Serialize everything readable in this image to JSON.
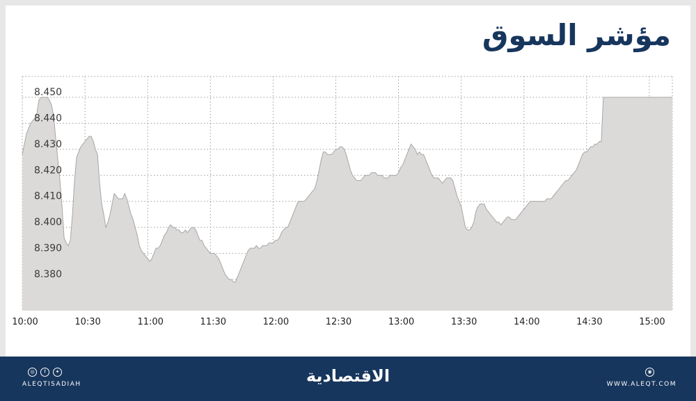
{
  "chart_data": {
    "type": "area",
    "title": "مؤشر السوق",
    "x_ticks": [
      "10:00",
      "10:30",
      "11:00",
      "11:30",
      "12:00",
      "12:30",
      "13:00",
      "13:30",
      "14:00",
      "14:30",
      "15:00"
    ],
    "y_ticks": [
      "8.380",
      "8.390",
      "8.400",
      "8.410",
      "8.420",
      "8.430",
      "8.440",
      "8.450"
    ],
    "ylim": [
      8.368,
      8.458
    ],
    "x_range_minutes": [
      0,
      311
    ],
    "grid": true,
    "fill_color": "#dcdad9",
    "line_color": "#a8a6a5",
    "series": [
      {
        "points": [
          [
            0,
            8.428
          ],
          [
            1,
            8.432
          ],
          [
            2,
            8.436
          ],
          [
            3,
            8.438
          ],
          [
            4,
            8.44
          ],
          [
            5,
            8.441
          ],
          [
            6,
            8.442
          ],
          [
            7,
            8.444
          ],
          [
            8,
            8.449
          ],
          [
            9,
            8.45
          ],
          [
            10,
            8.45
          ],
          [
            11,
            8.45
          ],
          [
            12,
            8.45
          ],
          [
            13,
            8.449
          ],
          [
            14,
            8.447
          ],
          [
            15,
            8.443
          ],
          [
            16,
            8.434
          ],
          [
            17,
            8.426
          ],
          [
            18,
            8.418
          ],
          [
            19,
            8.408
          ],
          [
            20,
            8.396
          ],
          [
            21,
            8.394
          ],
          [
            22,
            8.393
          ],
          [
            23,
            8.395
          ],
          [
            24,
            8.405
          ],
          [
            25,
            8.418
          ],
          [
            26,
            8.427
          ],
          [
            27,
            8.429
          ],
          [
            28,
            8.431
          ],
          [
            29,
            8.432
          ],
          [
            30,
            8.433
          ],
          [
            31,
            8.434
          ],
          [
            32,
            8.435
          ],
          [
            33,
            8.435
          ],
          [
            34,
            8.433
          ],
          [
            35,
            8.43
          ],
          [
            36,
            8.428
          ],
          [
            37,
            8.417
          ],
          [
            38,
            8.409
          ],
          [
            39,
            8.405
          ],
          [
            40,
            8.4
          ],
          [
            41,
            8.402
          ],
          [
            42,
            8.405
          ],
          [
            43,
            8.409
          ],
          [
            44,
            8.413
          ],
          [
            45,
            8.412
          ],
          [
            46,
            8.411
          ],
          [
            47,
            8.411
          ],
          [
            48,
            8.411
          ],
          [
            49,
            8.413
          ],
          [
            50,
            8.411
          ],
          [
            51,
            8.408
          ],
          [
            52,
            8.405
          ],
          [
            53,
            8.403
          ],
          [
            54,
            8.4
          ],
          [
            55,
            8.397
          ],
          [
            56,
            8.393
          ],
          [
            57,
            8.391
          ],
          [
            58,
            8.39
          ],
          [
            59,
            8.389
          ],
          [
            60,
            8.388
          ],
          [
            61,
            8.387
          ],
          [
            62,
            8.388
          ],
          [
            63,
            8.39
          ],
          [
            64,
            8.392
          ],
          [
            65,
            8.392
          ],
          [
            66,
            8.393
          ],
          [
            67,
            8.395
          ],
          [
            68,
            8.397
          ],
          [
            69,
            8.398
          ],
          [
            70,
            8.4
          ],
          [
            71,
            8.401
          ],
          [
            72,
            8.4
          ],
          [
            73,
            8.4
          ],
          [
            74,
            8.399
          ],
          [
            75,
            8.399
          ],
          [
            76,
            8.398
          ],
          [
            77,
            8.398
          ],
          [
            78,
            8.399
          ],
          [
            79,
            8.398
          ],
          [
            80,
            8.399
          ],
          [
            81,
            8.4
          ],
          [
            82,
            8.4
          ],
          [
            83,
            8.399
          ],
          [
            84,
            8.397
          ],
          [
            85,
            8.395
          ],
          [
            86,
            8.395
          ],
          [
            87,
            8.393
          ],
          [
            88,
            8.392
          ],
          [
            89,
            8.391
          ],
          [
            90,
            8.39
          ],
          [
            91,
            8.39
          ],
          [
            92,
            8.39
          ],
          [
            93,
            8.389
          ],
          [
            94,
            8.388
          ],
          [
            95,
            8.386
          ],
          [
            96,
            8.384
          ],
          [
            97,
            8.382
          ],
          [
            98,
            8.381
          ],
          [
            99,
            8.38
          ],
          [
            100,
            8.38
          ],
          [
            101,
            8.379
          ],
          [
            102,
            8.379
          ],
          [
            103,
            8.381
          ],
          [
            104,
            8.383
          ],
          [
            105,
            8.385
          ],
          [
            106,
            8.387
          ],
          [
            107,
            8.389
          ],
          [
            108,
            8.391
          ],
          [
            109,
            8.392
          ],
          [
            110,
            8.392
          ],
          [
            111,
            8.392
          ],
          [
            112,
            8.393
          ],
          [
            113,
            8.392
          ],
          [
            114,
            8.392
          ],
          [
            115,
            8.393
          ],
          [
            116,
            8.393
          ],
          [
            117,
            8.393
          ],
          [
            118,
            8.394
          ],
          [
            119,
            8.394
          ],
          [
            120,
            8.394
          ],
          [
            121,
            8.395
          ],
          [
            122,
            8.395
          ],
          [
            123,
            8.396
          ],
          [
            124,
            8.398
          ],
          [
            125,
            8.399
          ],
          [
            126,
            8.4
          ],
          [
            127,
            8.4
          ],
          [
            128,
            8.402
          ],
          [
            129,
            8.404
          ],
          [
            130,
            8.406
          ],
          [
            131,
            8.408
          ],
          [
            132,
            8.41
          ],
          [
            133,
            8.41
          ],
          [
            134,
            8.41
          ],
          [
            135,
            8.41
          ],
          [
            136,
            8.411
          ],
          [
            137,
            8.412
          ],
          [
            138,
            8.413
          ],
          [
            139,
            8.414
          ],
          [
            140,
            8.415
          ],
          [
            141,
            8.418
          ],
          [
            142,
            8.422
          ],
          [
            143,
            8.426
          ],
          [
            144,
            8.429
          ],
          [
            145,
            8.429
          ],
          [
            146,
            8.428
          ],
          [
            147,
            8.428
          ],
          [
            148,
            8.428
          ],
          [
            149,
            8.429
          ],
          [
            150,
            8.43
          ],
          [
            151,
            8.43
          ],
          [
            152,
            8.431
          ],
          [
            153,
            8.431
          ],
          [
            154,
            8.43
          ],
          [
            155,
            8.428
          ],
          [
            156,
            8.425
          ],
          [
            157,
            8.422
          ],
          [
            158,
            8.42
          ],
          [
            159,
            8.419
          ],
          [
            160,
            8.418
          ],
          [
            161,
            8.418
          ],
          [
            162,
            8.418
          ],
          [
            163,
            8.419
          ],
          [
            164,
            8.42
          ],
          [
            165,
            8.42
          ],
          [
            166,
            8.42
          ],
          [
            167,
            8.421
          ],
          [
            168,
            8.421
          ],
          [
            169,
            8.421
          ],
          [
            170,
            8.42
          ],
          [
            171,
            8.42
          ],
          [
            172,
            8.42
          ],
          [
            173,
            8.419
          ],
          [
            174,
            8.419
          ],
          [
            175,
            8.419
          ],
          [
            176,
            8.42
          ],
          [
            177,
            8.42
          ],
          [
            178,
            8.42
          ],
          [
            179,
            8.42
          ],
          [
            180,
            8.421
          ],
          [
            181,
            8.423
          ],
          [
            182,
            8.424
          ],
          [
            183,
            8.426
          ],
          [
            184,
            8.428
          ],
          [
            185,
            8.43
          ],
          [
            186,
            8.432
          ],
          [
            187,
            8.431
          ],
          [
            188,
            8.43
          ],
          [
            189,
            8.428
          ],
          [
            190,
            8.429
          ],
          [
            191,
            8.428
          ],
          [
            192,
            8.428
          ],
          [
            193,
            8.426
          ],
          [
            194,
            8.424
          ],
          [
            195,
            8.422
          ],
          [
            196,
            8.42
          ],
          [
            197,
            8.419
          ],
          [
            198,
            8.419
          ],
          [
            199,
            8.419
          ],
          [
            200,
            8.418
          ],
          [
            201,
            8.417
          ],
          [
            202,
            8.418
          ],
          [
            203,
            8.419
          ],
          [
            204,
            8.419
          ],
          [
            205,
            8.419
          ],
          [
            206,
            8.418
          ],
          [
            207,
            8.415
          ],
          [
            208,
            8.412
          ],
          [
            209,
            8.41
          ],
          [
            210,
            8.408
          ],
          [
            211,
            8.404
          ],
          [
            212,
            8.4
          ],
          [
            213,
            8.399
          ],
          [
            214,
            8.399
          ],
          [
            215,
            8.4
          ],
          [
            216,
            8.402
          ],
          [
            217,
            8.406
          ],
          [
            218,
            8.408
          ],
          [
            219,
            8.409
          ],
          [
            220,
            8.409
          ],
          [
            221,
            8.409
          ],
          [
            222,
            8.407
          ],
          [
            223,
            8.406
          ],
          [
            224,
            8.405
          ],
          [
            225,
            8.404
          ],
          [
            226,
            8.403
          ],
          [
            227,
            8.402
          ],
          [
            228,
            8.402
          ],
          [
            229,
            8.401
          ],
          [
            230,
            8.402
          ],
          [
            231,
            8.403
          ],
          [
            232,
            8.404
          ],
          [
            233,
            8.404
          ],
          [
            234,
            8.403
          ],
          [
            235,
            8.403
          ],
          [
            236,
            8.403
          ],
          [
            237,
            8.404
          ],
          [
            238,
            8.405
          ],
          [
            239,
            8.406
          ],
          [
            240,
            8.407
          ],
          [
            241,
            8.408
          ],
          [
            242,
            8.409
          ],
          [
            243,
            8.41
          ],
          [
            244,
            8.41
          ],
          [
            245,
            8.41
          ],
          [
            246,
            8.41
          ],
          [
            247,
            8.41
          ],
          [
            248,
            8.41
          ],
          [
            249,
            8.41
          ],
          [
            250,
            8.41
          ],
          [
            251,
            8.411
          ],
          [
            252,
            8.411
          ],
          [
            253,
            8.411
          ],
          [
            254,
            8.412
          ],
          [
            255,
            8.413
          ],
          [
            256,
            8.414
          ],
          [
            257,
            8.415
          ],
          [
            258,
            8.416
          ],
          [
            259,
            8.417
          ],
          [
            260,
            8.418
          ],
          [
            261,
            8.418
          ],
          [
            262,
            8.419
          ],
          [
            263,
            8.42
          ],
          [
            264,
            8.421
          ],
          [
            265,
            8.422
          ],
          [
            266,
            8.424
          ],
          [
            267,
            8.426
          ],
          [
            268,
            8.428
          ],
          [
            269,
            8.429
          ],
          [
            270,
            8.429
          ],
          [
            271,
            8.43
          ],
          [
            272,
            8.431
          ],
          [
            273,
            8.431
          ],
          [
            274,
            8.432
          ],
          [
            275,
            8.432
          ],
          [
            276,
            8.433
          ],
          [
            277,
            8.433
          ],
          [
            278,
            8.45
          ],
          [
            279,
            8.45
          ],
          [
            280,
            8.45
          ],
          [
            285,
            8.45
          ],
          [
            290,
            8.45
          ],
          [
            295,
            8.45
          ],
          [
            300,
            8.45
          ],
          [
            305,
            8.45
          ],
          [
            310,
            8.45
          ],
          [
            311,
            8.45
          ]
        ]
      }
    ]
  },
  "footer": {
    "handle": "ALEQTISADIAH",
    "brand": "الاقتصادية",
    "site": "WWW.ALEQT.COM",
    "social_icons": [
      "instagram-icon",
      "facebook-icon",
      "twitter-icon"
    ],
    "web_icon": "web-icon"
  }
}
